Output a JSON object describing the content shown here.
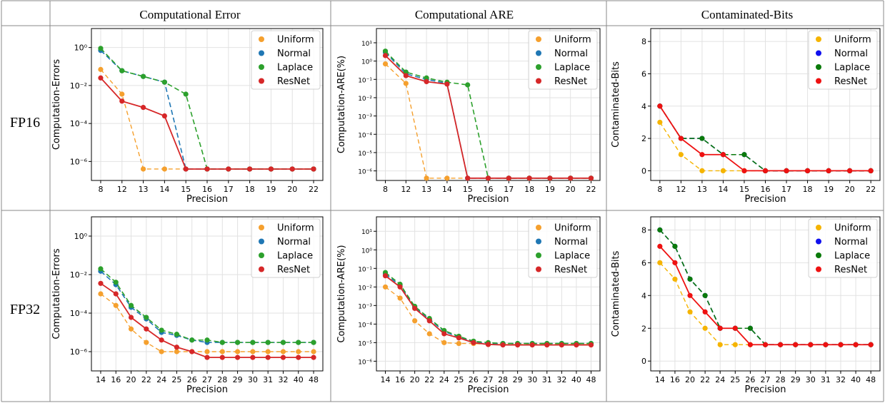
{
  "table": {
    "columns": [
      "Computational Error",
      "Computational ARE",
      "Contaminated-Bits"
    ],
    "rows": [
      "FP16",
      "FP32"
    ]
  },
  "legend": [
    "Uniform",
    "Normal",
    "Laplace",
    "ResNet"
  ],
  "colors": {
    "error": {
      "Uniform": "#f5a02e",
      "Normal": "#1f77b4",
      "Laplace": "#2ca02c",
      "ResNet": "#d62728"
    },
    "bits": {
      "Uniform": "#f5b400",
      "Normal": "#1010ee",
      "Laplace": "#0a7a0a",
      "ResNet": "#ee1111"
    }
  },
  "chart_data": [
    {
      "id": "fp16-error",
      "type": "line",
      "row": "FP16",
      "column": "Computational Error",
      "xlabel": "Precision",
      "ylabel": "Computation-Errors",
      "yscale": "log",
      "ylim": [
        1e-07,
        10.0
      ],
      "yticks": [
        1e-06,
        0.0001,
        0.01,
        1
      ],
      "ytick_labels": [
        "10^-6",
        "10^-4",
        "10^-2",
        "10^0"
      ],
      "categories": [
        "8",
        "12",
        "13",
        "14",
        "15",
        "16",
        "17",
        "18",
        "19",
        "20",
        "22"
      ],
      "series": [
        {
          "name": "Uniform",
          "values": [
            0.07,
            0.0035,
            4e-07,
            4e-07,
            4e-07,
            4e-07,
            4e-07,
            4e-07,
            4e-07,
            4e-07,
            4e-07
          ]
        },
        {
          "name": "Normal",
          "values": [
            0.7,
            0.06,
            0.03,
            0.015,
            4e-07,
            4e-07,
            4e-07,
            4e-07,
            4e-07,
            4e-07,
            4e-07
          ]
        },
        {
          "name": "Laplace",
          "values": [
            0.9,
            0.06,
            0.03,
            0.015,
            0.0035,
            4e-07,
            4e-07,
            4e-07,
            4e-07,
            4e-07,
            4e-07
          ]
        },
        {
          "name": "ResNet",
          "values": [
            0.025,
            0.0015,
            0.0007,
            0.00025,
            4e-07,
            4e-07,
            4e-07,
            4e-07,
            4e-07,
            4e-07,
            4e-07
          ]
        }
      ]
    },
    {
      "id": "fp16-are",
      "type": "line",
      "row": "FP16",
      "column": "Computational ARE",
      "xlabel": "Precision",
      "ylabel": "Computation-ARE(%)",
      "yscale": "log",
      "ylim": [
        3e-07,
        60
      ],
      "yticks": [
        1e-06,
        1e-05,
        0.0001,
        0.001,
        0.01,
        0.1,
        1,
        10
      ],
      "ytick_labels": [
        "10^-6",
        "10^-5",
        "10^-4",
        "10^-3",
        "10^-2",
        "10^-1",
        "10^0",
        "10^1"
      ],
      "categories": [
        "8",
        "12",
        "13",
        "14",
        "15",
        "16",
        "17",
        "18",
        "19",
        "20",
        "22"
      ],
      "series": [
        {
          "name": "Uniform",
          "values": [
            0.7,
            0.06,
            4e-07,
            4e-07,
            4e-07,
            4e-07,
            4e-07,
            4e-07,
            4e-07,
            4e-07,
            4e-07
          ]
        },
        {
          "name": "Normal",
          "values": [
            3.0,
            0.2,
            0.1,
            0.06,
            4e-07,
            4e-07,
            4e-07,
            4e-07,
            4e-07,
            4e-07,
            4e-07
          ]
        },
        {
          "name": "Laplace",
          "values": [
            3.5,
            0.25,
            0.12,
            0.07,
            0.05,
            4e-07,
            4e-07,
            4e-07,
            4e-07,
            4e-07,
            4e-07
          ]
        },
        {
          "name": "ResNet",
          "values": [
            2.0,
            0.16,
            0.075,
            0.055,
            4e-07,
            4e-07,
            4e-07,
            4e-07,
            4e-07,
            4e-07,
            4e-07
          ]
        }
      ]
    },
    {
      "id": "fp16-bits",
      "type": "line",
      "row": "FP16",
      "column": "Contaminated-Bits",
      "xlabel": "Precision",
      "ylabel": "Contaminated-Bits",
      "yscale": "linear",
      "ylim": [
        -0.6,
        8.8
      ],
      "yticks": [
        0,
        2,
        4,
        6,
        8
      ],
      "ytick_labels": [
        "0",
        "2",
        "4",
        "6",
        "8"
      ],
      "categories": [
        "8",
        "12",
        "13",
        "14",
        "15",
        "16",
        "17",
        "18",
        "19",
        "20",
        "22"
      ],
      "series": [
        {
          "name": "Uniform",
          "values": [
            3,
            1,
            0,
            0,
            0,
            0,
            0,
            0,
            0,
            0,
            0
          ]
        },
        {
          "name": "Normal",
          "values": [
            4,
            2,
            2,
            1,
            1,
            0,
            0,
            0,
            0,
            0,
            0
          ]
        },
        {
          "name": "Laplace",
          "values": [
            4,
            2,
            2,
            1,
            1,
            0,
            0,
            0,
            0,
            0,
            0
          ]
        },
        {
          "name": "ResNet",
          "values": [
            4,
            2,
            1,
            1,
            0,
            0,
            0,
            0,
            0,
            0,
            0
          ]
        }
      ]
    },
    {
      "id": "fp32-error",
      "type": "line",
      "row": "FP32",
      "column": "Computational Error",
      "xlabel": "Precision",
      "ylabel": "Computation-Errors",
      "yscale": "log",
      "ylim": [
        1e-07,
        10.0
      ],
      "yticks": [
        1e-06,
        0.0001,
        0.01,
        1
      ],
      "ytick_labels": [
        "10^-6",
        "10^-4",
        "10^-2",
        "10^0"
      ],
      "categories": [
        "14",
        "16",
        "20",
        "22",
        "24",
        "25",
        "26",
        "27",
        "28",
        "29",
        "30",
        "31",
        "32",
        "40",
        "48"
      ],
      "series": [
        {
          "name": "Uniform",
          "values": [
            0.001,
            0.00025,
            1.5e-05,
            3e-06,
            1e-06,
            1e-06,
            1e-06,
            1e-06,
            1e-06,
            1e-06,
            1e-06,
            1e-06,
            1e-06,
            1e-06,
            1e-06
          ]
        },
        {
          "name": "Normal",
          "values": [
            0.015,
            0.003,
            0.0002,
            5e-05,
            1e-05,
            7e-06,
            4e-06,
            3e-06,
            3e-06,
            3e-06,
            3e-06,
            3e-06,
            3e-06,
            3e-06,
            3e-06
          ]
        },
        {
          "name": "Laplace",
          "values": [
            0.02,
            0.004,
            0.00025,
            6e-05,
            1.3e-05,
            8e-06,
            4e-06,
            4e-06,
            3e-06,
            3e-06,
            3e-06,
            3e-06,
            3e-06,
            3e-06,
            3e-06
          ]
        },
        {
          "name": "ResNet",
          "values": [
            0.0035,
            0.001,
            6e-05,
            1.5e-05,
            4e-06,
            1.7e-06,
            1e-06,
            5e-07,
            5e-07,
            5e-07,
            5e-07,
            5e-07,
            5e-07,
            5e-07,
            5e-07
          ]
        }
      ]
    },
    {
      "id": "fp32-are",
      "type": "line",
      "row": "FP32",
      "column": "Computational ARE",
      "xlabel": "Precision",
      "ylabel": "Computation-ARE(%)",
      "yscale": "log",
      "ylim": [
        3e-07,
        60
      ],
      "yticks": [
        1e-06,
        1e-05,
        0.0001,
        0.001,
        0.01,
        0.1,
        1,
        10
      ],
      "ytick_labels": [
        "10^-6",
        "10^-5",
        "10^-4",
        "10^-3",
        "10^-2",
        "10^-1",
        "10^0",
        "10^1"
      ],
      "categories": [
        "14",
        "16",
        "20",
        "22",
        "24",
        "25",
        "26",
        "27",
        "28",
        "29",
        "30",
        "31",
        "32",
        "40",
        "48"
      ],
      "series": [
        {
          "name": "Uniform",
          "values": [
            0.01,
            0.0025,
            0.00015,
            3e-05,
            1e-05,
            9e-06,
            9e-06,
            8e-06,
            8e-06,
            8e-06,
            8e-06,
            8e-06,
            8e-06,
            8e-06,
            8e-06
          ]
        },
        {
          "name": "Normal",
          "values": [
            0.05,
            0.012,
            0.0008,
            0.00018,
            4e-05,
            2e-05,
            1.1e-05,
            9e-06,
            9e-06,
            9e-06,
            9e-06,
            9e-06,
            9e-06,
            9e-06,
            9e-06
          ]
        },
        {
          "name": "Laplace",
          "values": [
            0.06,
            0.014,
            0.0009,
            0.0002,
            4.5e-05,
            2.2e-05,
            1.2e-05,
            1e-05,
            9e-06,
            9e-06,
            9e-06,
            9e-06,
            9e-06,
            9e-06,
            9e-06
          ]
        },
        {
          "name": "ResNet",
          "values": [
            0.04,
            0.01,
            0.0007,
            0.00015,
            3e-05,
            1.8e-05,
            1e-05,
            8e-06,
            7.5e-06,
            7.5e-06,
            7.5e-06,
            7.5e-06,
            7.5e-06,
            7.5e-06,
            7.5e-06
          ]
        }
      ]
    },
    {
      "id": "fp32-bits",
      "type": "line",
      "row": "FP32",
      "column": "Contaminated-Bits",
      "xlabel": "Precision",
      "ylabel": "Contaminated-Bits",
      "yscale": "linear",
      "ylim": [
        -0.6,
        8.8
      ],
      "yticks": [
        0,
        2,
        4,
        6,
        8
      ],
      "ytick_labels": [
        "0",
        "2",
        "4",
        "6",
        "8"
      ],
      "categories": [
        "14",
        "16",
        "20",
        "22",
        "24",
        "25",
        "26",
        "27",
        "28",
        "29",
        "30",
        "31",
        "32",
        "40",
        "48"
      ],
      "series": [
        {
          "name": "Uniform",
          "values": [
            6,
            5,
            3,
            2,
            1,
            1,
            1,
            1,
            1,
            1,
            1,
            1,
            1,
            1,
            1
          ]
        },
        {
          "name": "Normal",
          "values": [
            8,
            7,
            5,
            4,
            2,
            2,
            2,
            1,
            1,
            1,
            1,
            1,
            1,
            1,
            1
          ]
        },
        {
          "name": "Laplace",
          "values": [
            8,
            7,
            5,
            4,
            2,
            2,
            2,
            1,
            1,
            1,
            1,
            1,
            1,
            1,
            1
          ]
        },
        {
          "name": "ResNet",
          "values": [
            7,
            6,
            4,
            3,
            2,
            2,
            1,
            1,
            1,
            1,
            1,
            1,
            1,
            1,
            1
          ]
        }
      ]
    }
  ]
}
